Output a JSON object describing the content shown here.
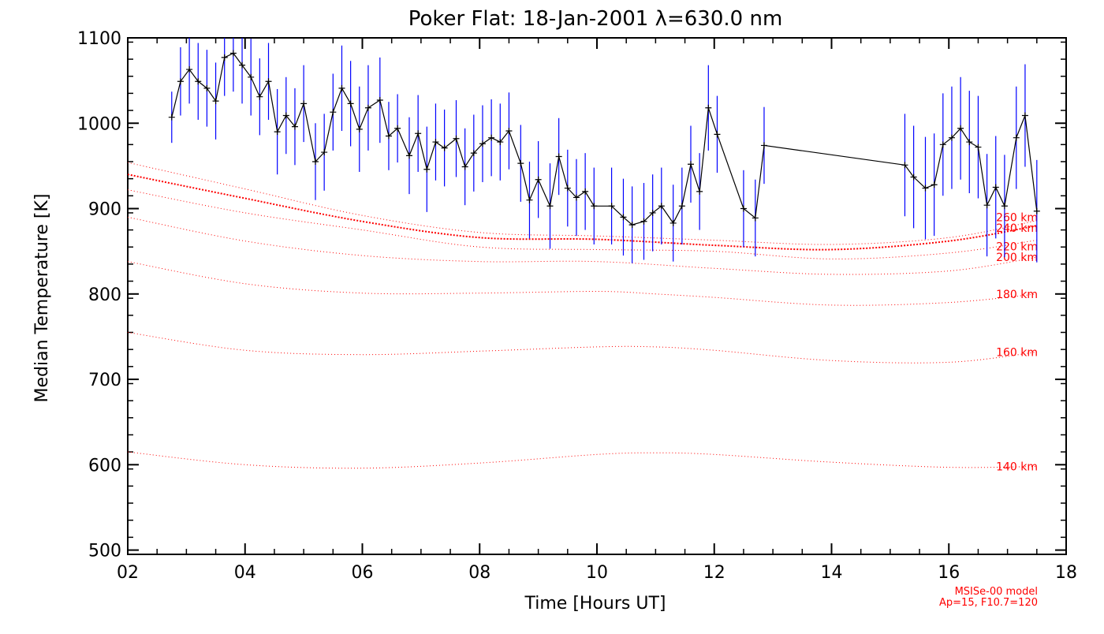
{
  "chart_data": {
    "type": "line",
    "title": "Poker Flat: 18-Jan-2001 λ=630.0 nm",
    "xlabel": "Time [Hours UT]",
    "ylabel": "Median Temperature [K]",
    "xlim": [
      2,
      18
    ],
    "ylim": [
      495,
      1100
    ],
    "xticks": [
      2,
      4,
      6,
      8,
      10,
      12,
      14,
      16,
      18
    ],
    "xtick_labels": [
      "02",
      "04",
      "06",
      "08",
      "10",
      "12",
      "14",
      "16",
      "18"
    ],
    "yticks": [
      500,
      600,
      700,
      800,
      900,
      1000,
      1100
    ],
    "ytick_labels": [
      "500",
      "600",
      "700",
      "800",
      "900",
      "1000",
      "1100"
    ],
    "grid": false,
    "colors": {
      "axis": "#000000",
      "data_line": "#000000",
      "error_bar": "#0000ff",
      "model": "#ff0000"
    },
    "measurements": {
      "x": [
        2.75,
        2.9,
        3.05,
        3.2,
        3.35,
        3.5,
        3.65,
        3.8,
        3.95,
        4.1,
        4.25,
        4.4,
        4.55,
        4.7,
        4.85,
        5.0,
        5.2,
        5.35,
        5.5,
        5.65,
        5.8,
        5.95,
        6.1,
        6.3,
        6.45,
        6.6,
        6.8,
        6.95,
        7.1,
        7.25,
        7.4,
        7.6,
        7.75,
        7.9,
        8.05,
        8.2,
        8.35,
        8.5,
        8.7,
        8.85,
        9.0,
        9.2,
        9.35,
        9.5,
        9.65,
        9.8,
        9.95,
        10.25,
        10.45,
        10.6,
        10.8,
        10.95,
        11.1,
        11.3,
        11.45,
        11.6,
        11.75,
        11.9,
        12.05,
        12.5,
        12.7,
        12.85,
        15.25,
        15.4,
        15.6,
        15.75,
        15.9,
        16.05,
        16.2,
        16.35,
        16.5,
        16.65,
        16.8,
        16.95,
        17.15,
        17.3,
        17.5
      ],
      "y": [
        1007,
        1049,
        1063,
        1049,
        1041,
        1026,
        1077,
        1082,
        1068,
        1054,
        1031,
        1049,
        990,
        1009,
        996,
        1023,
        955,
        966,
        1013,
        1041,
        1023,
        993,
        1018,
        1027,
        985,
        994,
        962,
        988,
        946,
        978,
        971,
        982,
        949,
        965,
        976,
        983,
        978,
        991,
        953,
        910,
        934,
        903,
        961,
        924,
        913,
        920,
        903,
        903,
        890,
        881,
        885,
        895,
        903,
        883,
        903,
        952,
        920,
        1018,
        987,
        900,
        889,
        974,
        951,
        937,
        924,
        928,
        975,
        983,
        994,
        978,
        972,
        904,
        925,
        903,
        983,
        1009,
        897
      ],
      "err": [
        30,
        40,
        40,
        45,
        45,
        45,
        45,
        45,
        45,
        45,
        45,
        45,
        50,
        45,
        45,
        45,
        45,
        45,
        45,
        50,
        50,
        50,
        50,
        50,
        40,
        40,
        45,
        45,
        50,
        45,
        45,
        45,
        45,
        45,
        45,
        45,
        45,
        45,
        45,
        45,
        45,
        50,
        45,
        45,
        45,
        45,
        45,
        45,
        45,
        45,
        45,
        45,
        45,
        45,
        45,
        45,
        45,
        50,
        45,
        45,
        45,
        45,
        60,
        60,
        60,
        60,
        60,
        60,
        60,
        60,
        60,
        60,
        60,
        60,
        60,
        60,
        60
      ]
    },
    "model_curves": [
      {
        "label": "140 km",
        "x": [
          2,
          4,
          6,
          8,
          10,
          11,
          12,
          14,
          16,
          17.5
        ],
        "y": [
          615,
          600,
          596,
          602,
          612,
          614,
          612,
          603,
          597,
          598
        ]
      },
      {
        "label": "160 km",
        "x": [
          2,
          4,
          6,
          8,
          10,
          11,
          12,
          14,
          16,
          17.5
        ],
        "y": [
          755,
          734,
          729,
          733,
          738,
          738,
          734,
          722,
          720,
          732
        ]
      },
      {
        "label": "180 km",
        "x": [
          2,
          4,
          6,
          8,
          10,
          11,
          12,
          14,
          16,
          17.5
        ],
        "y": [
          838,
          812,
          801,
          801,
          803,
          800,
          796,
          787,
          790,
          800
        ]
      },
      {
        "label": "200 km",
        "x": [
          2,
          4,
          6,
          8,
          10,
          12,
          14,
          16,
          17.5
        ],
        "y": [
          890,
          862,
          845,
          838,
          838,
          830,
          823,
          827,
          843
        ]
      },
      {
        "label": "220 km",
        "x": [
          2,
          4,
          6,
          8,
          10,
          12,
          14,
          16,
          17.5
        ],
        "y": [
          922,
          895,
          875,
          855,
          852,
          850,
          841,
          848,
          863
        ]
      },
      {
        "label": "240 km",
        "x": [
          2,
          4,
          6,
          8,
          10,
          12,
          14,
          16,
          17.5
        ],
        "y": [
          940,
          912,
          885,
          866,
          864,
          857,
          852,
          862,
          880
        ]
      },
      {
        "label": "260 km",
        "x": [
          2,
          4,
          6,
          8,
          10,
          12,
          14,
          16,
          17.5
        ],
        "y": [
          954,
          923,
          892,
          872,
          868,
          863,
          858,
          866,
          886
        ]
      }
    ],
    "annotations": {
      "model_line1": "MSISe-00 model",
      "model_line2": "Ap=15, F10.7=120"
    }
  }
}
